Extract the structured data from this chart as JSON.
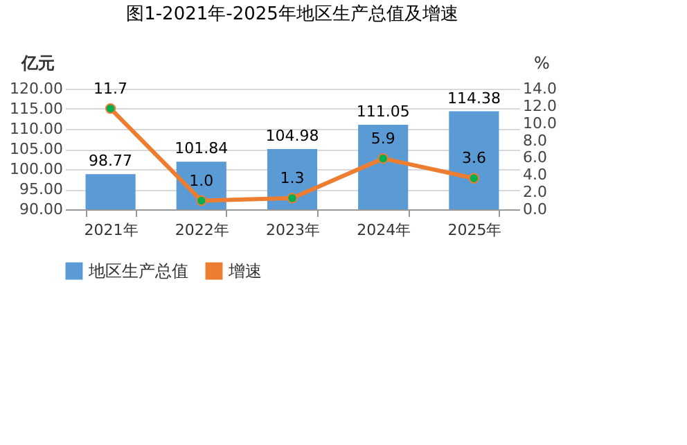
{
  "chart_data": {
    "type": "bar",
    "title": "图1-2021年-2025年地区生产总值及增速",
    "ylabel": "亿元",
    "y2label": "%",
    "categories": [
      "2021年",
      "2022年",
      "2023年",
      "2024年",
      "2025年"
    ],
    "series": [
      {
        "name": "地区生产总值",
        "color": "#5b9bd5",
        "values": [
          98.77,
          101.84,
          104.98,
          111.05,
          114.38
        ],
        "value_labels": [
          "98.77",
          "101.84",
          "104.98",
          "111.05",
          "114.38"
        ]
      },
      {
        "name": "增速",
        "type": "line",
        "axis": "y2",
        "color": "#ed7d31",
        "marker": "circle",
        "values": [
          11.7,
          1.0,
          1.3,
          5.9,
          3.6
        ],
        "value_labels": [
          "11.7",
          "1.0",
          "1.3",
          "5.9",
          "3.6"
        ]
      }
    ],
    "ylim": [
      90,
      120
    ],
    "yticks": [
      {
        "value": 90,
        "label": "90.00"
      },
      {
        "value": 95,
        "label": "95.00"
      },
      {
        "value": 100,
        "label": "100.00"
      },
      {
        "value": 105,
        "label": "105.00"
      },
      {
        "value": 110,
        "label": "110.00"
      },
      {
        "value": 115,
        "label": "115.00"
      },
      {
        "value": 120,
        "label": "120.00"
      }
    ],
    "y2lim": [
      0,
      14
    ],
    "y2ticks": [
      {
        "value": 0,
        "label": "0.0"
      },
      {
        "value": 2,
        "label": "2.0"
      },
      {
        "value": 4,
        "label": "4.0"
      },
      {
        "value": 6,
        "label": "6.0"
      },
      {
        "value": 8,
        "label": "8.0"
      },
      {
        "value": 10,
        "label": "10.0"
      },
      {
        "value": 12,
        "label": "12.0"
      },
      {
        "value": 14,
        "label": "14.0"
      }
    ],
    "grid": "y",
    "legend": "bottom"
  }
}
